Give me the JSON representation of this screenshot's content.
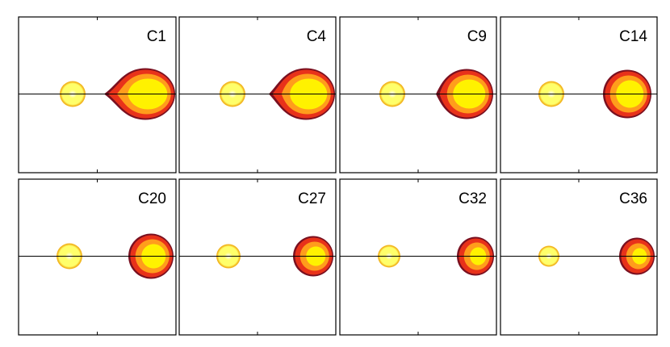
{
  "panels": [
    {
      "label": "C1"
    },
    {
      "label": "C4"
    },
    {
      "label": "C9"
    },
    {
      "label": "C14"
    },
    {
      "label": "C20"
    },
    {
      "label": "C27"
    },
    {
      "label": "C32"
    },
    {
      "label": "C36"
    }
  ],
  "colors": {
    "outer_rim": "#7a1020",
    "outer": "#e8321a",
    "middle": "#ff9d1c",
    "inner": "#fff200",
    "small_outer": "#f2b51e",
    "small_inner": "#ffff6a",
    "small_core": "#ffffff",
    "frame": "#000000"
  }
}
